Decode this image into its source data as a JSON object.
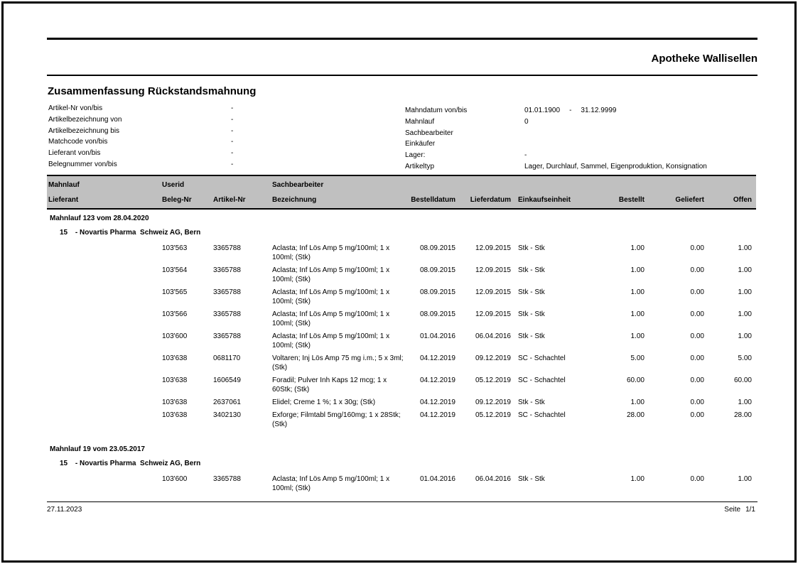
{
  "report": {
    "company": "Apotheke Wallisellen",
    "title": "Zusammenfassung Rückstandsmahnung"
  },
  "colors": {
    "header_band_bg": "#c0c0c0",
    "rule": "#000000",
    "frame": "#000000"
  },
  "filters": {
    "left": [
      {
        "label": "Artikel-Nr von/bis",
        "value": "-"
      },
      {
        "label": "Artikelbezeichnung von",
        "value": "-"
      },
      {
        "label": "Artikelbezeichnung bis",
        "value": "-"
      },
      {
        "label": "Matchcode von/bis",
        "value": "-"
      },
      {
        "label": "Lieferant von/bis",
        "value": "-"
      },
      {
        "label": "Belegnummer von/bis",
        "value": "-"
      }
    ],
    "right": [
      {
        "label": "Mahndatum von/bis",
        "values": [
          "01.01.1900",
          "-",
          "31.12.9999"
        ]
      },
      {
        "label": "Mahnlauf",
        "values": [
          "0"
        ]
      },
      {
        "label": "Sachbearbeiter",
        "values": []
      },
      {
        "label": "Einkäufer",
        "values": []
      },
      {
        "label": "Lager:",
        "values": [
          "-"
        ]
      },
      {
        "label": "Artikeltyp",
        "values": [
          "Lager, Durchlauf, Sammel, Eigenproduktion, Konsignation"
        ]
      }
    ]
  },
  "table": {
    "header": {
      "row1": {
        "mahnlauf": "Mahnlauf",
        "userid": "Userid",
        "sachbearbeiter": "Sachbearbeiter"
      },
      "row2": [
        "Lieferant",
        "Beleg-Nr",
        "Artikel-Nr",
        "Bezeichnung",
        "Bestelldatum",
        "Lieferdatum",
        "Einkaufseinheit",
        "Bestellt",
        "Geliefert",
        "Offen"
      ]
    },
    "groups": [
      {
        "title": "Mahnlauf 123 vom 28.04.2020",
        "suppliers": [
          {
            "nr": "15",
            "name": "- Novartis Pharma  Schweiz AG, Bern",
            "rows": [
              {
                "beleg": "103'563",
                "artikel": "3365788",
                "bezeichnung": "Aclasta; Inf Lös Amp 5 mg/100ml; 1 x 100ml; (Stk)",
                "bestelldatum": "08.09.2015",
                "lieferdatum": "12.09.2015",
                "einheit": "Stk - Stk",
                "bestellt": "1.00",
                "geliefert": "0.00",
                "offen": "1.00"
              },
              {
                "beleg": "103'564",
                "artikel": "3365788",
                "bezeichnung": "Aclasta; Inf Lös Amp 5 mg/100ml; 1 x 100ml; (Stk)",
                "bestelldatum": "08.09.2015",
                "lieferdatum": "12.09.2015",
                "einheit": "Stk - Stk",
                "bestellt": "1.00",
                "geliefert": "0.00",
                "offen": "1.00"
              },
              {
                "beleg": "103'565",
                "artikel": "3365788",
                "bezeichnung": "Aclasta; Inf Lös Amp 5 mg/100ml; 1 x 100ml; (Stk)",
                "bestelldatum": "08.09.2015",
                "lieferdatum": "12.09.2015",
                "einheit": "Stk - Stk",
                "bestellt": "1.00",
                "geliefert": "0.00",
                "offen": "1.00"
              },
              {
                "beleg": "103'566",
                "artikel": "3365788",
                "bezeichnung": "Aclasta; Inf Lös Amp 5 mg/100ml; 1 x 100ml; (Stk)",
                "bestelldatum": "08.09.2015",
                "lieferdatum": "12.09.2015",
                "einheit": "Stk - Stk",
                "bestellt": "1.00",
                "geliefert": "0.00",
                "offen": "1.00"
              },
              {
                "beleg": "103'600",
                "artikel": "3365788",
                "bezeichnung": "Aclasta; Inf Lös Amp 5 mg/100ml; 1 x 100ml; (Stk)",
                "bestelldatum": "01.04.2016",
                "lieferdatum": "06.04.2016",
                "einheit": "Stk - Stk",
                "bestellt": "1.00",
                "geliefert": "0.00",
                "offen": "1.00"
              },
              {
                "beleg": "103'638",
                "artikel": "0681170",
                "bezeichnung": "Voltaren; Inj Lös Amp 75 mg i.m.; 5 x 3ml; (Stk)",
                "bestelldatum": "04.12.2019",
                "lieferdatum": "09.12.2019",
                "einheit": "SC - Schachtel",
                "bestellt": "5.00",
                "geliefert": "0.00",
                "offen": "5.00"
              },
              {
                "beleg": "103'638",
                "artikel": "1606549",
                "bezeichnung": "Foradil; Pulver Inh Kaps 12 mcg; 1 x 60Stk; (Stk)",
                "bestelldatum": "04.12.2019",
                "lieferdatum": "05.12.2019",
                "einheit": "SC - Schachtel",
                "bestellt": "60.00",
                "geliefert": "0.00",
                "offen": "60.00"
              },
              {
                "beleg": "103'638",
                "artikel": "2637061",
                "bezeichnung": "Elidel; Creme 1 %; 1 x 30g; (Stk)",
                "bestelldatum": "04.12.2019",
                "lieferdatum": "09.12.2019",
                "einheit": "Stk - Stk",
                "bestellt": "1.00",
                "geliefert": "0.00",
                "offen": "1.00"
              },
              {
                "beleg": "103'638",
                "artikel": "3402130",
                "bezeichnung": "Exforge; Filmtabl 5mg/160mg; 1 x 28Stk; (Stk)",
                "bestelldatum": "04.12.2019",
                "lieferdatum": "05.12.2019",
                "einheit": "SC - Schachtel",
                "bestellt": "28.00",
                "geliefert": "0.00",
                "offen": "28.00"
              }
            ]
          }
        ]
      },
      {
        "title": "Mahnlauf 19 vom 23.05.2017",
        "suppliers": [
          {
            "nr": "15",
            "name": "- Novartis Pharma  Schweiz AG, Bern",
            "rows": [
              {
                "beleg": "103'600",
                "artikel": "3365788",
                "bezeichnung": "Aclasta; Inf Lös Amp 5 mg/100ml; 1 x 100ml; (Stk)",
                "bestelldatum": "01.04.2016",
                "lieferdatum": "06.04.2016",
                "einheit": "Stk - Stk",
                "bestellt": "1.00",
                "geliefert": "0.00",
                "offen": "1.00"
              }
            ]
          }
        ]
      }
    ]
  },
  "footer": {
    "date": "27.11.2023",
    "page_label": "Seite",
    "page_value": "1/1"
  }
}
